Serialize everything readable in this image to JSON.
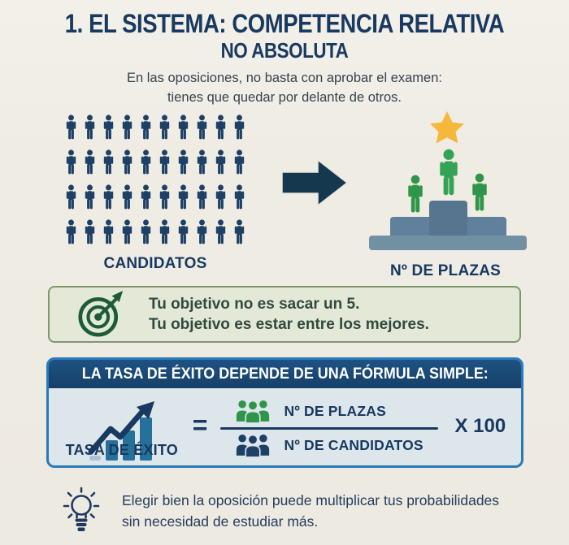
{
  "colors": {
    "page-bg": "#efece4",
    "navy": "#1e4066",
    "title-navy": "#183960",
    "arrow-navy": "#15384f",
    "green": "#2e9549",
    "green-bright": "#35a355",
    "green-dark": "#1d5b38",
    "star-yellow": "#f5b83d",
    "podium-base": "#7191a3",
    "podium-mid": "#60809b",
    "podium-top": "#57758f",
    "objective-bg": "#e3e8d7",
    "objective-border": "#7f976f",
    "objective-text": "#33493e",
    "formula-border": "#2b7ab8",
    "formula-bg": "#dde6eb",
    "bar-teal": "#26719a",
    "tip-text": "#243c5c"
  },
  "icons": {
    "arrow": "arrow-right-icon",
    "star": "star-icon",
    "person": "person-pictogram-icon",
    "people_group": "people-group-icon",
    "target": "target-dart-icon",
    "chart": "bar-chart-growth-icon",
    "lightbulb": "lightbulb-icon"
  },
  "header": {
    "title_line1": "1. EL SISTEMA: COMPETENCIA RELATIVA",
    "title_line2": "NO ABSOLUTA",
    "subtitle_line1": "En las oposiciones, no basta con aprobar el examen:",
    "subtitle_line2": "tienes que quedar por delante de otros."
  },
  "comparison": {
    "candidates_label": "CANDIDATOS",
    "plazas_label": "Nº DE PLAZAS",
    "grid": {
      "rows": 4,
      "cols": 10
    },
    "podium_people": 3
  },
  "objective_box": {
    "line1": "Tu objetivo no es sacar un 5.",
    "line2": "Tu objetivo es estar entre los mejores."
  },
  "formula_box": {
    "header": "LA TASA DE ÉXITO DEPENDE DE UNA FÓRMULA SIMPLE:",
    "left_label": "TASA DE ÉXITO",
    "equals": "=",
    "numerator_label": "Nº DE PLAZAS",
    "denominator_label": "Nº DE CANDIDATOS",
    "multiplier": "X 100"
  },
  "tip": {
    "line1": "Elegir bien la oposición puede multiplicar tus probabilidades",
    "line2": "sin necesidad de estudiar más."
  }
}
